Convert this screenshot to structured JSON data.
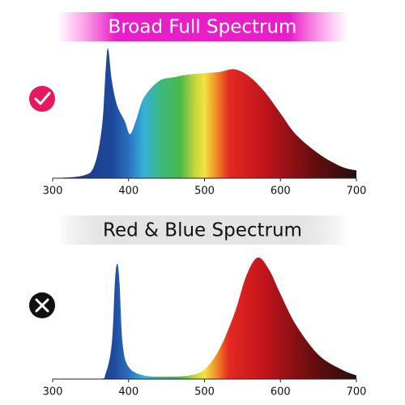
{
  "chart_data": [
    {
      "type": "area",
      "title": "Broad Full Spectrum",
      "x": [
        300,
        340,
        355,
        365,
        370,
        373,
        378,
        385,
        395,
        402,
        410,
        420,
        440,
        460,
        480,
        500,
        520,
        540,
        560,
        580,
        600,
        620,
        650,
        680,
        700
      ],
      "values": [
        0,
        2,
        10,
        40,
        85,
        100,
        75,
        56,
        44,
        34,
        45,
        62,
        75,
        78,
        80,
        81,
        82,
        84,
        78,
        66,
        50,
        34,
        19,
        9,
        6
      ],
      "xlim": [
        300,
        700
      ],
      "xticks": [
        300,
        400,
        500,
        600,
        700
      ],
      "ylim": [
        0,
        100
      ]
    },
    {
      "type": "area",
      "title": "Red & Blue Spectrum",
      "x": [
        300,
        360,
        370,
        378,
        382,
        385,
        388,
        392,
        400,
        420,
        450,
        480,
        500,
        520,
        540,
        555,
        570,
        585,
        600,
        620,
        650,
        680,
        700
      ],
      "values": [
        0,
        0,
        5,
        30,
        80,
        95,
        80,
        30,
        10,
        3,
        2,
        3,
        8,
        25,
        55,
        85,
        100,
        90,
        70,
        45,
        20,
        8,
        3
      ],
      "xlim": [
        300,
        700
      ],
      "xticks": [
        300,
        400,
        500,
        600,
        700
      ],
      "ylim": [
        0,
        100
      ]
    }
  ]
}
